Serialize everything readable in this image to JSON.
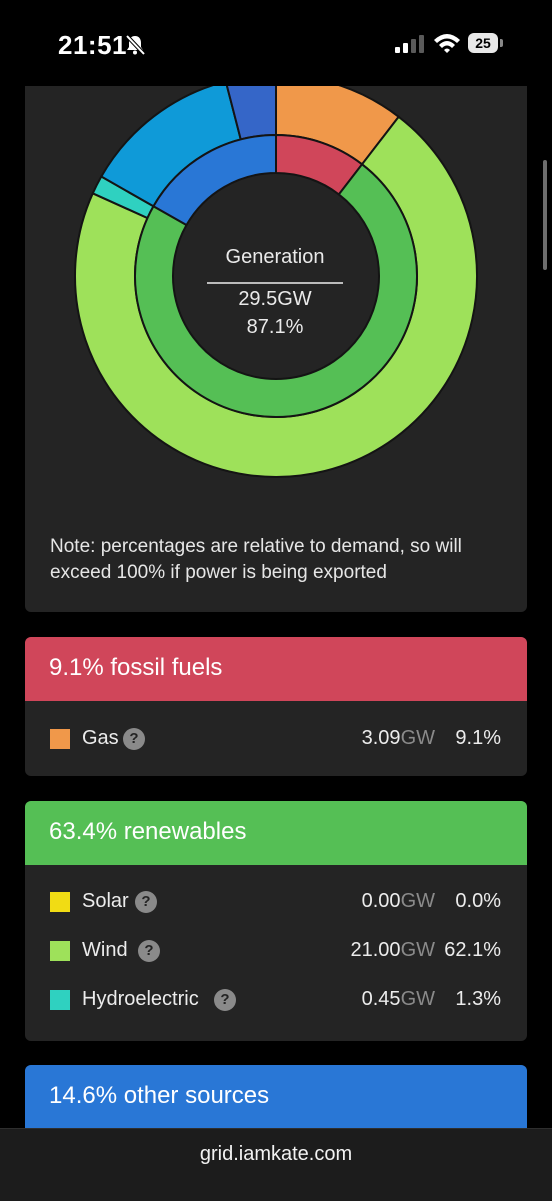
{
  "status_bar": {
    "time": "21:51",
    "battery": "25"
  },
  "chart": {
    "center_title": "Generation",
    "center_value": "29.5GW",
    "center_pct": "87.1%",
    "note": "Note: percentages are relative to demand, so will exceed 100% if power is being exported"
  },
  "chart_data": {
    "type": "pie",
    "title": "Generation",
    "outer_ring": [
      {
        "name": "Gas",
        "value": 9.1,
        "color": "#f0984a"
      },
      {
        "name": "Wind",
        "value": 62.1,
        "color": "#9ee15a"
      },
      {
        "name": "Hydroelectric",
        "value": 1.3,
        "color": "#2fd1c0"
      },
      {
        "name": "Blue segment",
        "value": 11.1,
        "color": "#0f9ad8"
      },
      {
        "name": "Dark blue segment",
        "value": 3.5,
        "color": "#3566c8"
      }
    ],
    "inner_ring": [
      {
        "name": "fossil fuels",
        "value": 9.1,
        "color": "#d0465a"
      },
      {
        "name": "renewables",
        "value": 63.4,
        "color": "#55bf55"
      },
      {
        "name": "other sources",
        "value": 14.6,
        "color": "#2977d6"
      }
    ]
  },
  "fossil": {
    "title": "9.1% fossil fuels",
    "color": "#d0465a",
    "rows": [
      {
        "label": "Gas",
        "gw": "3.09",
        "unit": "GW",
        "pct": "9.1%",
        "color": "#f0984a"
      }
    ]
  },
  "renewables": {
    "title": "63.4% renewables",
    "color": "#55bf55",
    "rows": [
      {
        "label": "Solar",
        "gw": "0.00",
        "unit": "GW",
        "pct": "0.0%",
        "color": "#f1dc14"
      },
      {
        "label": "Wind",
        "gw": "21.00",
        "unit": "GW",
        "pct": "62.1%",
        "color": "#9ee15a"
      },
      {
        "label": "Hydroelectric",
        "gw": "0.45",
        "unit": "GW",
        "pct": "1.3%",
        "color": "#2fd1c0"
      }
    ]
  },
  "other": {
    "title": "14.6% other sources",
    "color": "#2977d6"
  },
  "help_icon": "?",
  "url": "grid.iamkate.com"
}
